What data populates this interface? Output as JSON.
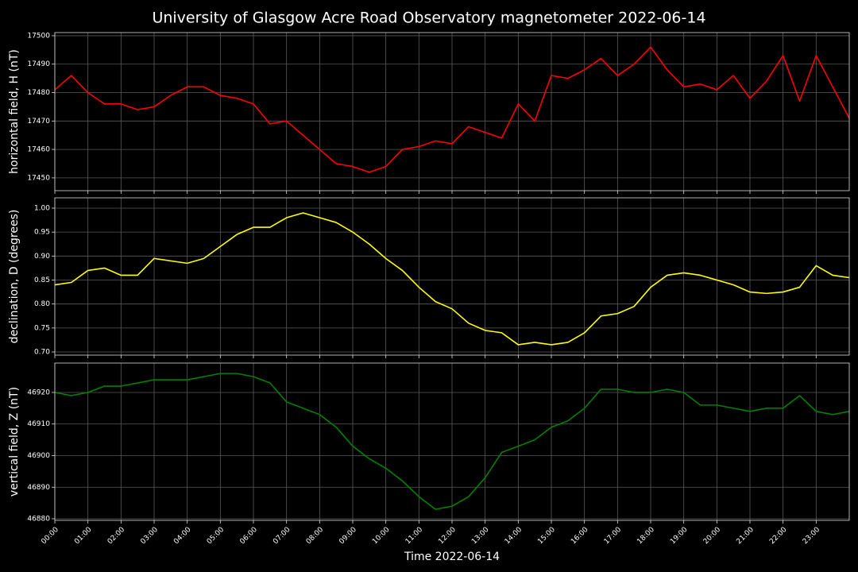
{
  "figure": {
    "title": "University of Glasgow Acre Road Observatory magnetometer 2022-06-14",
    "xlabel": "Time 2022-06-14"
  },
  "chart_data": [
    {
      "type": "line",
      "ylabel": "horizontal field, H (nT)",
      "color": "#ff0000",
      "grid": true,
      "x": [
        0,
        0.5,
        1,
        1.5,
        2,
        2.5,
        3,
        3.5,
        4,
        4.5,
        5,
        5.5,
        6,
        6.5,
        7,
        7.5,
        8,
        8.5,
        9,
        9.5,
        10,
        10.5,
        11,
        11.5,
        12,
        12.5,
        13,
        13.5,
        14,
        14.5,
        15,
        15.5,
        16,
        16.5,
        17,
        17.5,
        18,
        18.5,
        19,
        19.5,
        20,
        20.5,
        21,
        21.5,
        22,
        22.5,
        23,
        23.5,
        24
      ],
      "values": [
        17481,
        17486,
        17480,
        17476,
        17476,
        17474,
        17475,
        17479,
        17482,
        17482,
        17479,
        17478,
        17476,
        17469,
        17470,
        17465,
        17460,
        17455,
        17454,
        17452,
        17454,
        17460,
        17461,
        17463,
        17462,
        17468,
        17466,
        17464,
        17476,
        17470,
        17486,
        17485,
        17488,
        17492,
        17486,
        17490,
        17496,
        17488,
        17482,
        17483,
        17481,
        17486,
        17478,
        17484,
        17493,
        17477,
        17493,
        17482,
        17471
      ],
      "xlim": [
        0,
        24
      ],
      "ylim": [
        17445.5,
        17501.1
      ],
      "yticks": [
        17450,
        17460,
        17470,
        17480,
        17490,
        17500
      ]
    },
    {
      "type": "line",
      "ylabel": "declination, D (degrees)",
      "color": "#ffff00",
      "grid": true,
      "x": [
        0,
        0.5,
        1,
        1.5,
        2,
        2.5,
        3,
        3.5,
        4,
        4.5,
        5,
        5.5,
        6,
        6.5,
        7,
        7.5,
        8,
        8.5,
        9,
        9.5,
        10,
        10.5,
        11,
        11.5,
        12,
        12.5,
        13,
        13.5,
        14,
        14.5,
        15,
        15.5,
        16,
        16.5,
        17,
        17.5,
        18,
        18.5,
        19,
        19.5,
        20,
        20.5,
        21,
        21.5,
        22,
        22.5,
        23,
        23.5,
        24
      ],
      "values": [
        0.84,
        0.845,
        0.87,
        0.875,
        0.86,
        0.86,
        0.895,
        0.89,
        0.885,
        0.895,
        0.92,
        0.945,
        0.96,
        0.96,
        0.98,
        0.99,
        0.98,
        0.97,
        0.95,
        0.925,
        0.895,
        0.87,
        0.835,
        0.805,
        0.79,
        0.76,
        0.745,
        0.74,
        0.715,
        0.72,
        0.715,
        0.72,
        0.74,
        0.775,
        0.78,
        0.795,
        0.835,
        0.86,
        0.865,
        0.86,
        0.85,
        0.84,
        0.825,
        0.822,
        0.825,
        0.835,
        0.88,
        0.86,
        0.855
      ],
      "xlim": [
        0,
        24
      ],
      "ylim": [
        0.6934,
        1.0215
      ],
      "yticks": [
        {
          "value": 0.7,
          "label": "0.70"
        },
        0.75,
        {
          "value": 0.8,
          "label": "0.80"
        },
        0.85,
        {
          "value": 0.9,
          "label": "0.90"
        },
        0.95,
        {
          "value": 1.0,
          "label": "1.00"
        }
      ]
    },
    {
      "type": "line",
      "ylabel": "vertical field, Z (nT)",
      "color": "#008000",
      "grid": true,
      "x": [
        0,
        0.5,
        1,
        1.5,
        2,
        2.5,
        3,
        3.5,
        4,
        4.5,
        5,
        5.5,
        6,
        6.5,
        7,
        7.5,
        8,
        8.5,
        9,
        9.5,
        10,
        10.5,
        11,
        11.5,
        12,
        12.5,
        13,
        13.5,
        14,
        14.5,
        15,
        15.5,
        16,
        16.5,
        17,
        17.5,
        18,
        18.5,
        19,
        19.5,
        20,
        20.5,
        21,
        21.5,
        22,
        22.5,
        23,
        23.5,
        24
      ],
      "values": [
        46920,
        46919,
        46920,
        46922,
        46922,
        46923,
        46924,
        46924,
        46924,
        46925,
        46926,
        46926,
        46925,
        46923,
        46917,
        46915,
        46913,
        46909,
        46903,
        46899,
        46896,
        46892,
        46887,
        46883,
        46884,
        46887,
        46893,
        46901,
        46903,
        46905,
        46909,
        46911,
        46915,
        46921,
        46921,
        46920,
        46920,
        46921,
        46920,
        46916,
        46916,
        46915,
        46914,
        46915,
        46915,
        46919,
        46914,
        46913,
        46914
      ],
      "xlim": [
        0,
        24
      ],
      "ylim": [
        46879.5,
        46929.3
      ],
      "yticks": [
        46880,
        46890,
        46900,
        46910,
        46920
      ],
      "xticks": [
        {
          "value": 0,
          "label": "00:00"
        },
        {
          "value": 1,
          "label": "01:00"
        },
        {
          "value": 2,
          "label": "02:00"
        },
        {
          "value": 3,
          "label": "03:00"
        },
        {
          "value": 4,
          "label": "04:00"
        },
        {
          "value": 5,
          "label": "05:00"
        },
        {
          "value": 6,
          "label": "06:00"
        },
        {
          "value": 7,
          "label": "07:00"
        },
        {
          "value": 8,
          "label": "08:00"
        },
        {
          "value": 9,
          "label": "09:00"
        },
        {
          "value": 10,
          "label": "10:00"
        },
        {
          "value": 11,
          "label": "11:00"
        },
        {
          "value": 12,
          "label": "12:00"
        },
        {
          "value": 13,
          "label": "13:00"
        },
        {
          "value": 14,
          "label": "14:00"
        },
        {
          "value": 15,
          "label": "15:00"
        },
        {
          "value": 16,
          "label": "16:00"
        },
        {
          "value": 17,
          "label": "17:00"
        },
        {
          "value": 18,
          "label": "18:00"
        },
        {
          "value": 19,
          "label": "19:00"
        },
        {
          "value": 20,
          "label": "20:00"
        },
        {
          "value": 21,
          "label": "21:00"
        },
        {
          "value": 22,
          "label": "22:00"
        },
        {
          "value": 23,
          "label": "23:00"
        }
      ]
    }
  ]
}
